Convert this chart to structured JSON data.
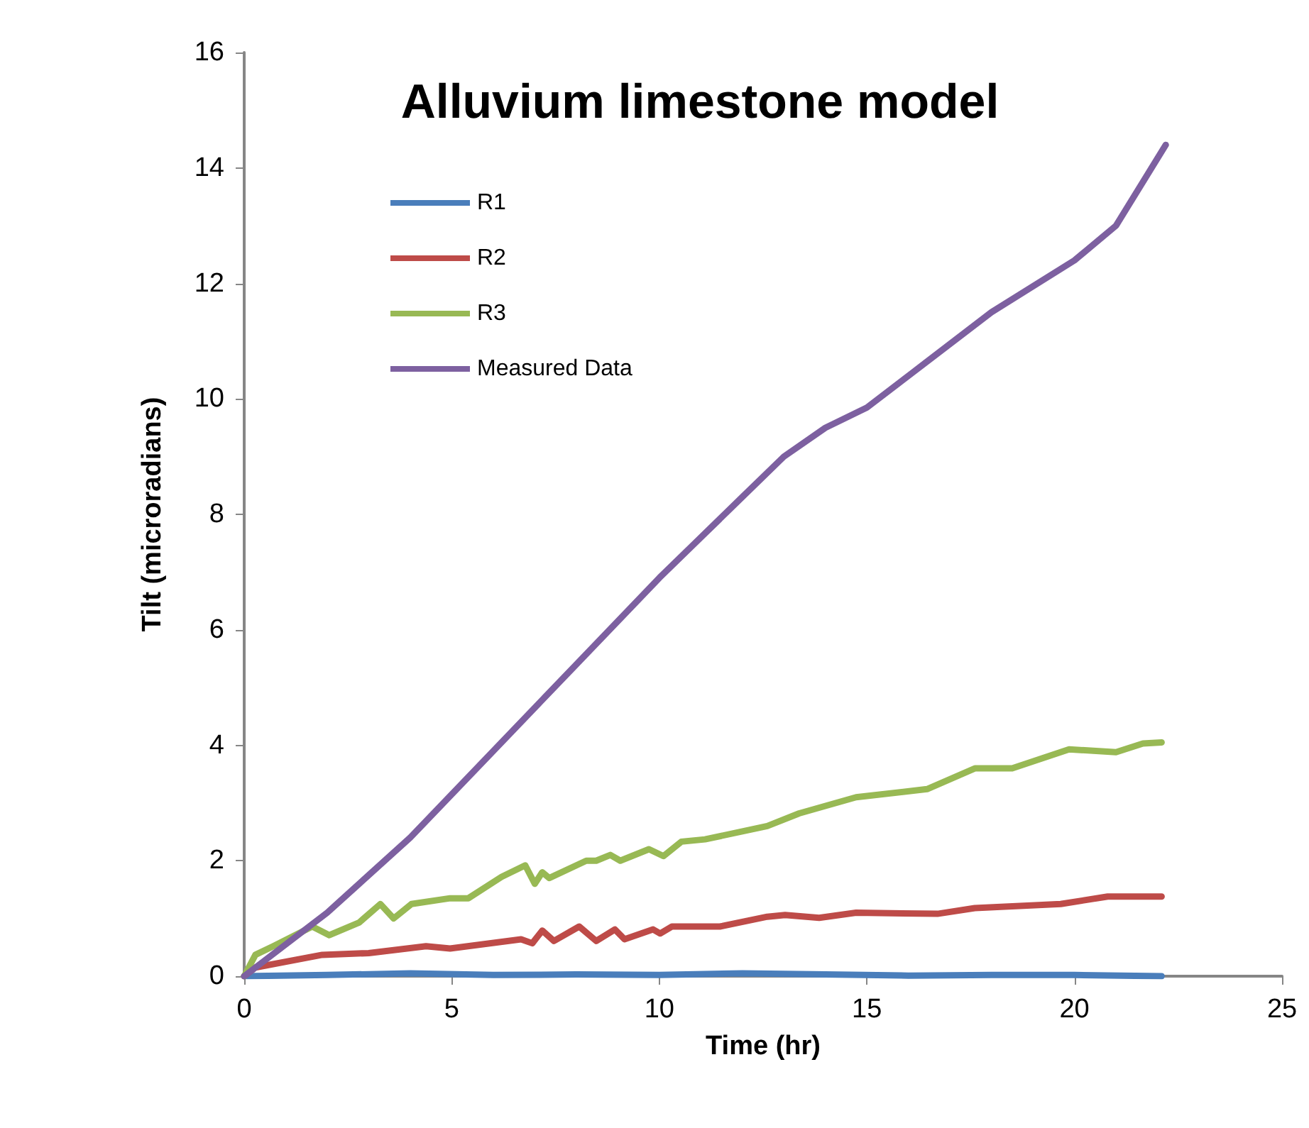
{
  "chart_data": {
    "type": "line",
    "title": "Alluvium limestone model",
    "xlabel": "Time (hr)",
    "ylabel": "Tilt (microradians)",
    "xlim": [
      0,
      25
    ],
    "xticks": [
      0,
      5,
      10,
      15,
      20,
      25
    ],
    "ylim": [
      0,
      16
    ],
    "yticks": [
      0,
      2,
      4,
      6,
      8,
      10,
      12,
      14,
      16
    ],
    "grid": false,
    "legend": "top left",
    "marker": "none",
    "line_style": "solid",
    "series": [
      {
        "name": "R1",
        "color": "#4a7ebb",
        "x": [
          0,
          2,
          4,
          6,
          8,
          10,
          12,
          14,
          16,
          18,
          20,
          22.1
        ],
        "values": [
          0,
          0.02,
          0.05,
          0.02,
          0.03,
          0.02,
          0.05,
          0.03,
          0.01,
          0.02,
          0.02,
          0
        ]
      },
      {
        "name": "R2",
        "color": "#be4b48",
        "x": [
          0,
          0.27,
          1.88,
          3.0,
          4.38,
          4.96,
          6.67,
          6.94,
          7.18,
          7.46,
          8.07,
          8.48,
          8.93,
          9.16,
          9.85,
          10.02,
          10.3,
          11.46,
          12.6,
          13.03,
          13.85,
          14.74,
          16.7,
          17.6,
          19.67,
          20.8,
          21.65,
          22.1
        ],
        "values": [
          0,
          0.15,
          0.37,
          0.4,
          0.52,
          0.48,
          0.64,
          0.57,
          0.79,
          0.61,
          0.86,
          0.61,
          0.81,
          0.64,
          0.81,
          0.74,
          0.86,
          0.86,
          1.03,
          1.06,
          1.01,
          1.1,
          1.08,
          1.18,
          1.25,
          1.38,
          1.38,
          1.38
        ]
      },
      {
        "name": "R3",
        "color": "#98b954",
        "x": [
          0,
          0.27,
          0.7,
          1.64,
          2.05,
          2.77,
          3.28,
          3.6,
          4.03,
          4.96,
          5.4,
          6.2,
          6.77,
          7.0,
          7.18,
          7.35,
          8.24,
          8.48,
          8.82,
          9.06,
          9.75,
          10.1,
          10.53,
          11.1,
          12.6,
          13.37,
          14.74,
          16.45,
          17.6,
          18.5,
          19.87,
          21.0,
          21.65,
          22.1
        ],
        "values": [
          0,
          0.37,
          0.52,
          0.86,
          0.71,
          0.93,
          1.25,
          1.0,
          1.25,
          1.35,
          1.35,
          1.72,
          1.92,
          1.6,
          1.8,
          1.7,
          2.0,
          2.0,
          2.1,
          2.0,
          2.2,
          2.08,
          2.33,
          2.37,
          2.6,
          2.82,
          3.1,
          3.24,
          3.6,
          3.6,
          3.93,
          3.88,
          4.03,
          4.05
        ]
      },
      {
        "name": "Measured Data",
        "color": "#7d60a0",
        "x": [
          0,
          2,
          4,
          6,
          8,
          10,
          12,
          13,
          14,
          15,
          16,
          18,
          20,
          21,
          22.2
        ],
        "values": [
          0,
          1.1,
          2.4,
          3.9,
          5.4,
          6.9,
          8.3,
          9.0,
          9.5,
          9.85,
          10.4,
          11.5,
          12.4,
          13.0,
          14.4
        ]
      }
    ]
  }
}
